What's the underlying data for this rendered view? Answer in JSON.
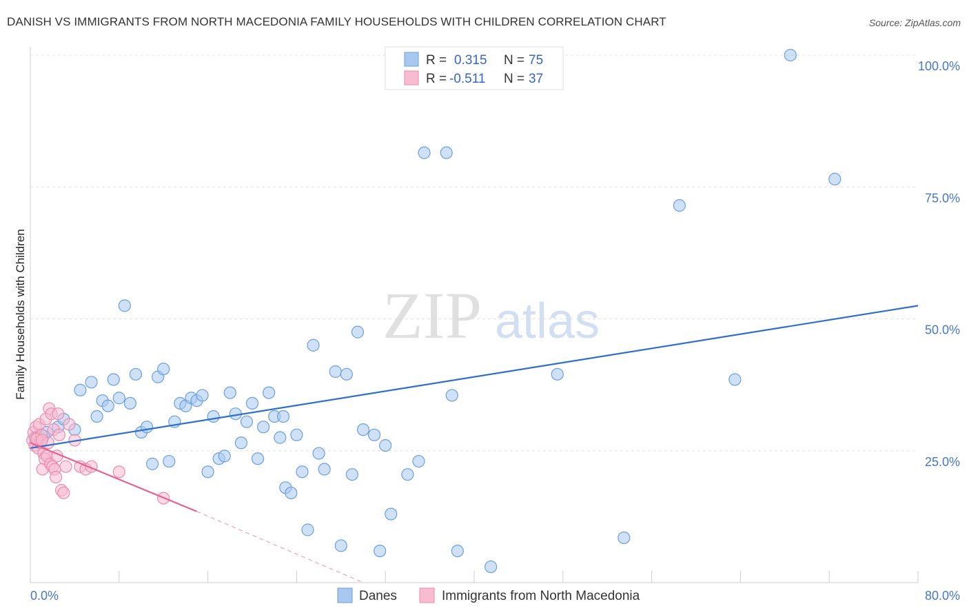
{
  "chart_data": {
    "type": "scatter",
    "title": "DANISH VS IMMIGRANTS FROM NORTH MACEDONIA FAMILY HOUSEHOLDS WITH CHILDREN CORRELATION CHART",
    "source": "Source: ZipAtlas.com",
    "watermark": {
      "zip": "ZIP",
      "atlas": "atlas"
    },
    "xlabel": "",
    "ylabel": "Family Households with Children",
    "xlim": [
      0,
      80
    ],
    "ylim": [
      0,
      100
    ],
    "x_tick_labels": {
      "min": "0.0%",
      "max": "80.0%"
    },
    "y_ticks": [
      {
        "value": 25,
        "label": "25.0%"
      },
      {
        "value": 50,
        "label": "50.0%"
      },
      {
        "value": 75,
        "label": "75.0%"
      },
      {
        "value": 100,
        "label": "100.0%"
      }
    ],
    "legend_top": [
      {
        "r_label": "R = ",
        "r_value": "0.315",
        "n_label": "N = ",
        "n_value": "75"
      },
      {
        "r_label": "R = ",
        "r_value": "-0.511",
        "n_label": "N = ",
        "n_value": "37"
      }
    ],
    "series": [
      {
        "name": "Danes",
        "color": "#a8c8f0",
        "stroke": "#6b9fe0",
        "line_color": "#2b6fd0",
        "trend": {
          "x0": 0,
          "y0": 25.5,
          "x1": 80,
          "y1": 52.5
        },
        "points": [
          [
            0.4,
            27.5
          ],
          [
            0.8,
            27.0
          ],
          [
            1.2,
            27.8
          ],
          [
            1.5,
            28.5
          ],
          [
            2.5,
            29.5
          ],
          [
            3.0,
            31.0
          ],
          [
            4.0,
            29.0
          ],
          [
            4.5,
            36.5
          ],
          [
            5.5,
            38.0
          ],
          [
            6.0,
            31.5
          ],
          [
            6.5,
            34.5
          ],
          [
            7.0,
            33.5
          ],
          [
            7.5,
            38.5
          ],
          [
            8.0,
            35.0
          ],
          [
            8.5,
            52.5
          ],
          [
            9.0,
            34.0
          ],
          [
            9.5,
            39.5
          ],
          [
            10.0,
            28.5
          ],
          [
            10.5,
            29.5
          ],
          [
            11.0,
            22.5
          ],
          [
            11.5,
            39.0
          ],
          [
            12.0,
            40.5
          ],
          [
            12.5,
            23.0
          ],
          [
            13.0,
            30.5
          ],
          [
            13.5,
            34.0
          ],
          [
            14.0,
            33.5
          ],
          [
            14.5,
            35.0
          ],
          [
            15.0,
            34.5
          ],
          [
            15.5,
            35.5
          ],
          [
            16.0,
            21.0
          ],
          [
            16.5,
            31.5
          ],
          [
            17.0,
            23.5
          ],
          [
            17.5,
            24.0
          ],
          [
            18.0,
            36.0
          ],
          [
            18.5,
            32.0
          ],
          [
            19.0,
            26.5
          ],
          [
            19.5,
            30.5
          ],
          [
            20.0,
            34.0
          ],
          [
            20.5,
            23.5
          ],
          [
            21.0,
            29.5
          ],
          [
            21.5,
            36.0
          ],
          [
            22.0,
            31.5
          ],
          [
            22.5,
            27.5
          ],
          [
            23.0,
            18.0
          ],
          [
            23.5,
            17.0
          ],
          [
            24.0,
            28.0
          ],
          [
            24.5,
            21.0
          ],
          [
            25.0,
            10.0
          ],
          [
            25.5,
            45.0
          ],
          [
            26.0,
            24.5
          ],
          [
            26.5,
            21.5
          ],
          [
            27.5,
            40.0
          ],
          [
            28.0,
            7.0
          ],
          [
            28.5,
            39.5
          ],
          [
            29.0,
            20.5
          ],
          [
            29.5,
            47.5
          ],
          [
            30.0,
            29.0
          ],
          [
            31.0,
            28.0
          ],
          [
            31.5,
            6.0
          ],
          [
            32.0,
            26.0
          ],
          [
            32.5,
            13.0
          ],
          [
            34.0,
            20.5
          ],
          [
            35.0,
            23.0
          ],
          [
            35.5,
            81.5
          ],
          [
            37.5,
            81.5
          ],
          [
            38.0,
            35.5
          ],
          [
            38.5,
            6.0
          ],
          [
            41.5,
            3.0
          ],
          [
            47.5,
            39.5
          ],
          [
            53.5,
            8.5
          ],
          [
            58.5,
            71.5
          ],
          [
            63.5,
            38.5
          ],
          [
            68.5,
            100.0
          ],
          [
            72.5,
            76.5
          ],
          [
            22.8,
            31.5
          ]
        ]
      },
      {
        "name": "Immigrants from North Macedonia",
        "color": "#f8bcd0",
        "stroke": "#ec8aae",
        "line_color": "#e8608e",
        "trend": {
          "x0": 0,
          "y0": 26.5,
          "x1": 15,
          "y1": 13.5
        },
        "trend_dashed": {
          "x0": 15,
          "y0": 13.5,
          "x1": 30,
          "y1": 0
        },
        "points": [
          [
            0.2,
            27.0
          ],
          [
            0.3,
            28.5
          ],
          [
            0.4,
            26.0
          ],
          [
            0.5,
            29.5
          ],
          [
            0.6,
            27.5
          ],
          [
            0.7,
            25.5
          ],
          [
            0.8,
            30.0
          ],
          [
            0.9,
            26.5
          ],
          [
            1.0,
            28.0
          ],
          [
            1.1,
            21.5
          ],
          [
            1.2,
            24.5
          ],
          [
            1.3,
            23.5
          ],
          [
            1.4,
            31.0
          ],
          [
            1.5,
            24.0
          ],
          [
            1.6,
            26.5
          ],
          [
            1.7,
            33.0
          ],
          [
            1.8,
            22.5
          ],
          [
            1.9,
            32.0
          ],
          [
            2.0,
            22.0
          ],
          [
            2.1,
            29.0
          ],
          [
            2.2,
            21.5
          ],
          [
            2.3,
            20.0
          ],
          [
            2.4,
            24.0
          ],
          [
            2.5,
            32.0
          ],
          [
            2.6,
            28.0
          ],
          [
            2.8,
            17.5
          ],
          [
            3.0,
            17.0
          ],
          [
            3.2,
            22.0
          ],
          [
            3.5,
            30.0
          ],
          [
            4.0,
            27.0
          ],
          [
            4.5,
            22.0
          ],
          [
            5.0,
            21.5
          ],
          [
            5.5,
            22.0
          ],
          [
            8.0,
            21.0
          ],
          [
            12.0,
            16.0
          ],
          [
            0.55,
            27.2
          ],
          [
            1.05,
            27.0
          ]
        ]
      }
    ]
  }
}
